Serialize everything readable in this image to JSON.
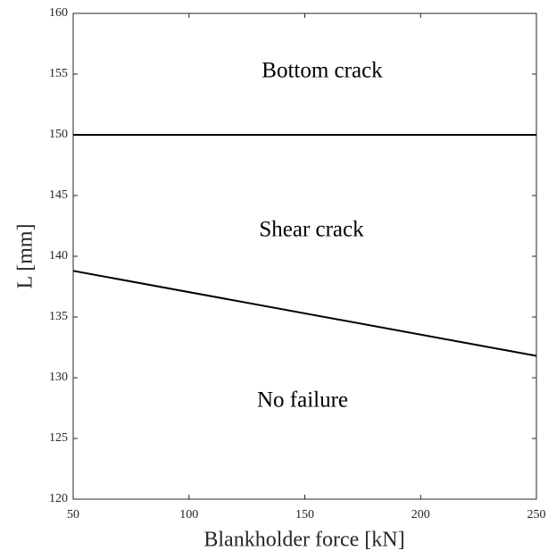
{
  "chart_data": {
    "type": "line",
    "xlabel": "Blankholder force [kN]",
    "ylabel": "L [mm]",
    "annotations": [
      "Bottom crack",
      "Shear crack",
      "No failure"
    ],
    "x": [
      50,
      250
    ],
    "series": [
      {
        "color": "#000000",
        "values": [
          150,
          150
        ]
      },
      {
        "color": "#000000",
        "values": [
          138.8,
          131.8
        ]
      }
    ],
    "xlim": [
      50,
      250
    ],
    "xticks": [
      50,
      100,
      150,
      200,
      250
    ],
    "ylim": [
      120,
      160
    ],
    "yticks": [
      120,
      125,
      130,
      135,
      140,
      145,
      150,
      155,
      160
    ],
    "grid": false
  }
}
